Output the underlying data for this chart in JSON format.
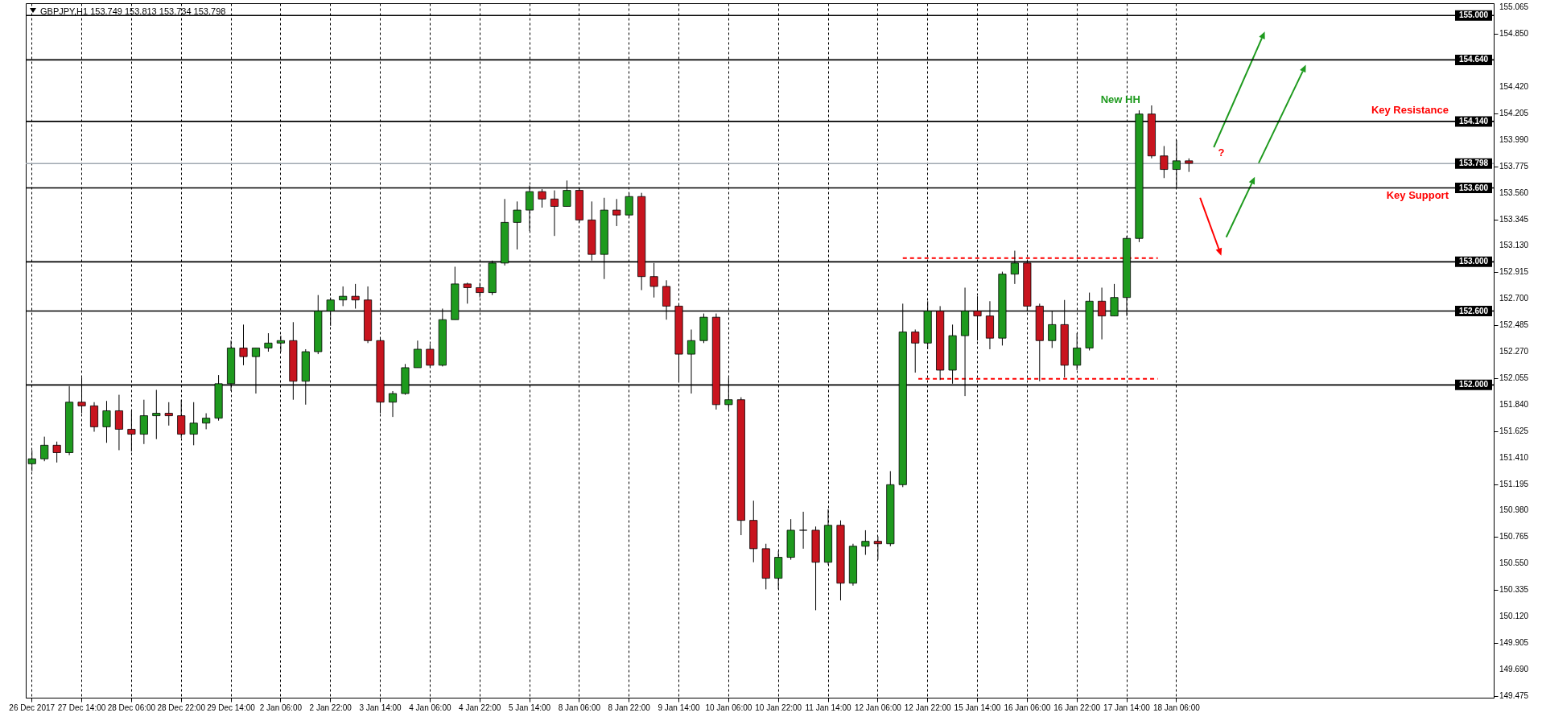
{
  "chart_data": {
    "type": "candlestick",
    "title": "GBPJPY,H1  153.749 153.813 153.734 153.798",
    "categories": [
      "26 Dec 2017",
      null,
      null,
      null,
      "27 Dec 14:00",
      null,
      null,
      null,
      "28 Dec 06:00",
      null,
      null,
      null,
      "28 Dec 22:00",
      null,
      null,
      null,
      "29 Dec 14:00",
      null,
      null,
      null,
      "2 Jan 06:00",
      null,
      null,
      null,
      "2 Jan 22:00",
      null,
      null,
      null,
      "3 Jan 14:00",
      null,
      null,
      null,
      "4 Jan 06:00",
      null,
      null,
      null,
      "4 Jan 22:00",
      null,
      null,
      null,
      "5 Jan 14:00",
      null,
      null,
      null,
      "8 Jan 06:00",
      null,
      null,
      null,
      "8 Jan 22:00",
      null,
      null,
      null,
      "9 Jan 14:00",
      null,
      null,
      null,
      "10 Jan 06:00",
      null,
      null,
      null,
      "10 Jan 22:00",
      null,
      null,
      null,
      "11 Jan 14:00",
      null,
      null,
      null,
      "12 Jan 06:00",
      null,
      null,
      null,
      "12 Jan 22:00",
      null,
      null,
      null,
      "15 Jan 14:00",
      null,
      null,
      null,
      "16 Jan 06:00",
      null,
      null,
      null,
      "16 Jan 22:00",
      null,
      null,
      null,
      "17 Jan 14:00",
      null,
      null,
      null,
      "18 Jan 06:00",
      null,
      null,
      null,
      null,
      null,
      null,
      null,
      null,
      null,
      null,
      null,
      null,
      null,
      null,
      null,
      null,
      null,
      null,
      null,
      null,
      null,
      null,
      null,
      null,
      null
    ],
    "ohlc": [
      [
        151.36,
        151.47,
        151.3,
        151.4
      ],
      [
        151.4,
        151.58,
        151.38,
        151.51
      ],
      [
        151.51,
        151.54,
        151.37,
        151.45
      ],
      [
        151.45,
        151.99,
        151.43,
        151.86
      ],
      [
        151.86,
        152.06,
        151.77,
        151.83
      ],
      [
        151.83,
        151.86,
        151.62,
        151.66
      ],
      [
        151.66,
        151.87,
        151.53,
        151.79
      ],
      [
        151.79,
        151.92,
        151.47,
        151.64
      ],
      [
        151.64,
        151.79,
        151.46,
        151.6
      ],
      [
        151.6,
        151.88,
        151.52,
        151.75
      ],
      [
        151.75,
        151.96,
        151.56,
        151.77
      ],
      [
        151.77,
        151.86,
        151.67,
        151.75
      ],
      [
        151.75,
        151.88,
        151.57,
        151.6
      ],
      [
        151.6,
        151.86,
        151.51,
        151.69
      ],
      [
        151.69,
        151.77,
        151.64,
        151.73
      ],
      [
        151.73,
        152.08,
        151.71,
        152.01
      ],
      [
        152.01,
        152.36,
        151.95,
        152.3
      ],
      [
        152.3,
        152.49,
        152.16,
        152.23
      ],
      [
        152.23,
        152.3,
        151.93,
        152.3
      ],
      [
        152.3,
        152.42,
        152.27,
        152.34
      ],
      [
        152.34,
        152.4,
        152.27,
        152.36
      ],
      [
        152.36,
        152.51,
        151.88,
        152.03
      ],
      [
        152.03,
        152.29,
        151.84,
        152.27
      ],
      [
        152.27,
        152.73,
        152.25,
        152.6
      ],
      [
        152.6,
        152.71,
        152.48,
        152.69
      ],
      [
        152.69,
        152.8,
        152.64,
        152.72
      ],
      [
        152.72,
        152.82,
        152.62,
        152.69
      ],
      [
        152.69,
        152.8,
        152.34,
        152.36
      ],
      [
        152.36,
        152.38,
        151.77,
        151.86
      ],
      [
        151.86,
        151.95,
        151.74,
        151.93
      ],
      [
        151.93,
        152.17,
        151.92,
        152.14
      ],
      [
        152.14,
        152.36,
        152.14,
        152.29
      ],
      [
        152.29,
        152.33,
        152.14,
        152.16
      ],
      [
        152.16,
        152.62,
        152.15,
        152.53
      ],
      [
        152.53,
        152.96,
        152.53,
        152.82
      ],
      [
        152.82,
        152.83,
        152.66,
        152.79
      ],
      [
        152.79,
        152.83,
        152.71,
        152.75
      ],
      [
        152.75,
        153.01,
        152.73,
        152.99
      ],
      [
        152.99,
        153.51,
        152.97,
        153.32
      ],
      [
        153.32,
        153.49,
        153.1,
        153.42
      ],
      [
        153.42,
        153.62,
        153.25,
        153.57
      ],
      [
        153.57,
        153.59,
        153.44,
        153.51
      ],
      [
        153.51,
        153.58,
        153.21,
        153.45
      ],
      [
        153.45,
        153.66,
        153.45,
        153.58
      ],
      [
        153.58,
        153.6,
        153.32,
        153.34
      ],
      [
        153.34,
        153.49,
        153.01,
        153.06
      ],
      [
        153.06,
        153.52,
        152.86,
        153.42
      ],
      [
        153.42,
        153.51,
        153.29,
        153.38
      ],
      [
        153.38,
        153.56,
        153.36,
        153.53
      ],
      [
        153.53,
        153.56,
        152.77,
        152.88
      ],
      [
        152.88,
        152.99,
        152.71,
        152.8
      ],
      [
        152.8,
        152.85,
        152.53,
        152.64
      ],
      [
        152.64,
        152.66,
        152.03,
        152.25
      ],
      [
        152.25,
        152.45,
        151.93,
        152.36
      ],
      [
        152.36,
        152.58,
        152.34,
        152.55
      ],
      [
        152.55,
        152.58,
        151.8,
        151.84
      ],
      [
        151.84,
        152.06,
        151.8,
        151.88
      ],
      [
        151.88,
        151.9,
        150.78,
        150.9
      ],
      [
        150.9,
        151.06,
        150.56,
        150.67
      ],
      [
        150.67,
        150.71,
        150.34,
        150.43
      ],
      [
        150.43,
        150.65,
        150.34,
        150.6
      ],
      [
        150.6,
        150.91,
        150.58,
        150.82
      ],
      [
        150.82,
        150.97,
        150.67,
        150.82
      ],
      [
        150.82,
        150.85,
        150.17,
        150.56
      ],
      [
        150.56,
        150.99,
        150.54,
        150.86
      ],
      [
        150.86,
        150.9,
        150.25,
        150.39
      ],
      [
        150.39,
        150.71,
        150.37,
        150.69
      ],
      [
        150.69,
        150.82,
        150.62,
        150.73
      ],
      [
        150.73,
        150.77,
        150.58,
        150.71
      ],
      [
        150.71,
        151.3,
        150.69,
        151.19
      ],
      [
        151.19,
        152.66,
        151.17,
        152.43
      ],
      [
        152.43,
        152.45,
        152.1,
        152.34
      ],
      [
        152.34,
        152.68,
        152.29,
        152.6
      ],
      [
        152.6,
        152.64,
        152.04,
        152.12
      ],
      [
        152.12,
        152.49,
        152.01,
        152.4
      ],
      [
        152.4,
        152.79,
        151.91,
        152.6
      ],
      [
        152.6,
        152.72,
        152.36,
        152.56
      ],
      [
        152.56,
        152.68,
        152.29,
        152.38
      ],
      [
        152.38,
        152.92,
        152.32,
        152.9
      ],
      [
        152.9,
        153.09,
        152.82,
        152.99
      ],
      [
        152.99,
        153.01,
        152.6,
        152.64
      ],
      [
        152.64,
        152.66,
        152.03,
        152.36
      ],
      [
        152.36,
        152.6,
        152.3,
        152.49
      ],
      [
        152.49,
        152.69,
        152.06,
        152.16
      ],
      [
        152.16,
        152.42,
        152.12,
        152.3
      ],
      [
        152.3,
        152.75,
        152.28,
        152.68
      ],
      [
        152.68,
        152.79,
        152.37,
        152.56
      ],
      [
        152.56,
        152.82,
        152.56,
        152.71
      ],
      [
        152.71,
        153.21,
        152.56,
        153.19
      ],
      [
        153.19,
        154.23,
        153.16,
        154.2
      ],
      [
        154.2,
        154.27,
        153.84,
        153.86
      ],
      [
        153.86,
        153.94,
        153.68,
        153.75
      ],
      [
        153.75,
        153.99,
        153.6,
        153.82
      ],
      [
        153.82,
        153.84,
        153.73,
        153.8
      ],
      null,
      null,
      null,
      null,
      null,
      null,
      null,
      null,
      null,
      null,
      null,
      null,
      null,
      null,
      null,
      null,
      null,
      null,
      null,
      null,
      null,
      null,
      null,
      null
    ],
    "ylim": [
      149.46,
      155.1
    ],
    "yticks": [
      155.065,
      {
        "value": 154.85,
        "label": "154.850"
      },
      {
        "value": 154.42,
        "label": "154.420"
      },
      154.205,
      {
        "value": 153.99,
        "label": "153.990"
      },
      153.775,
      {
        "value": 153.56,
        "label": "153.560"
      },
      153.345,
      {
        "value": 153.13,
        "label": "153.130"
      },
      152.915,
      {
        "value": 152.7,
        "label": "152.700"
      },
      152.485,
      {
        "value": 152.27,
        "label": "152.270"
      },
      152.055,
      {
        "value": 151.84,
        "label": "151.840"
      },
      151.625,
      {
        "value": 151.41,
        "label": "151.410"
      },
      151.195,
      {
        "value": 150.98,
        "label": "150.980"
      },
      150.765,
      {
        "value": 150.55,
        "label": "150.550"
      },
      150.335,
      {
        "value": 150.12,
        "label": "150.120"
      },
      149.905,
      {
        "value": 149.69,
        "label": "149.690"
      },
      149.475
    ],
    "grid": "x",
    "ref_lines": [
      {
        "axis": "y",
        "value": 155.0,
        "label": "155.000",
        "color": "#000000"
      },
      {
        "axis": "y",
        "value": 154.64,
        "label": "154.640",
        "color": "#000000"
      },
      {
        "axis": "y",
        "value": 154.14,
        "label": "154.140",
        "color": "#000000"
      },
      {
        "axis": "y",
        "value": 153.798,
        "label": "153.798",
        "color": "#a0a8b0"
      },
      {
        "axis": "y",
        "value": 153.6,
        "label": "153.600",
        "color": "#000000"
      },
      {
        "axis": "y",
        "value": 153.0,
        "label": "153.000",
        "color": "#000000"
      },
      {
        "axis": "y",
        "value": 152.6,
        "label": "152.600",
        "color": "#000000"
      },
      {
        "axis": "y",
        "value": 152.0,
        "label": "152.000",
        "color": "#000000"
      }
    ],
    "annotations": [
      "New HH",
      "Key Resistance",
      "?",
      "Key Support"
    ]
  }
}
